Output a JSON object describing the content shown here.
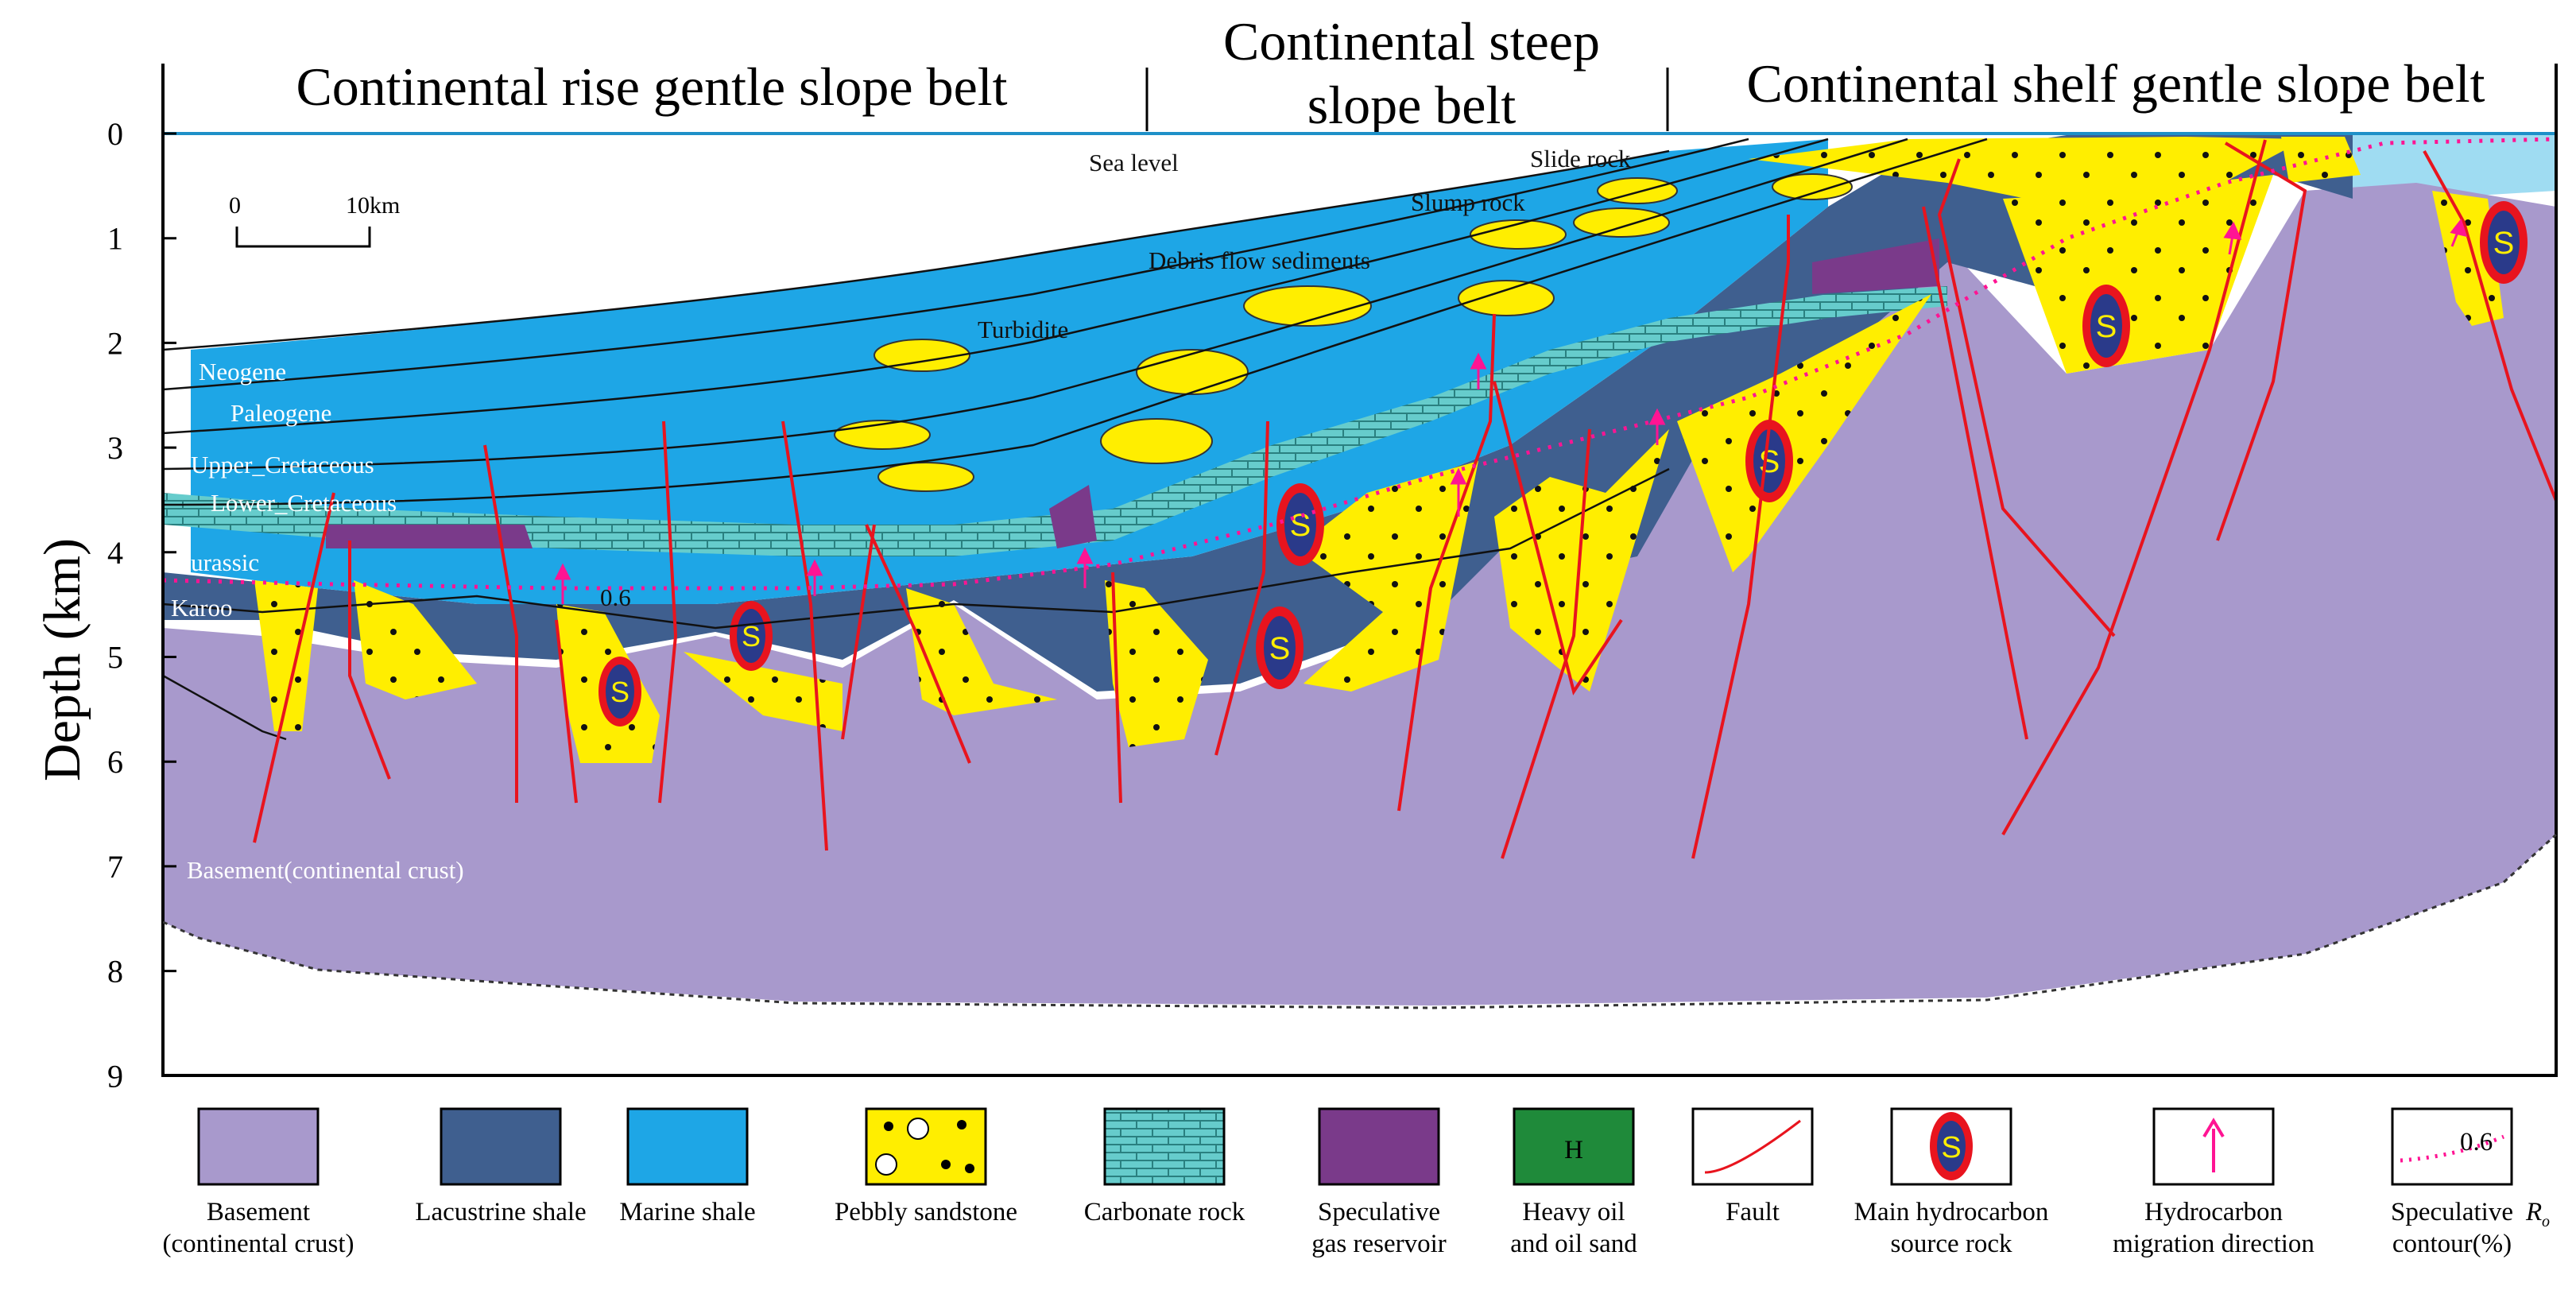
{
  "belts": {
    "rise": "Continental rise gentle slope belt",
    "steep_line1": "Continental steep",
    "steep_line2": "slope belt",
    "shelf": "Continental shelf gentle slope belt"
  },
  "axis": {
    "ylabel": "Depth (km)",
    "ticks": [
      "0",
      "1",
      "2",
      "3",
      "4",
      "5",
      "6",
      "7",
      "8",
      "9"
    ]
  },
  "scale_bar": {
    "start": "0",
    "end": "10km"
  },
  "labels": {
    "sea_level": "Sea level",
    "slide_rock": "Slide rock",
    "slump_rock": "Slump rock",
    "debris_flow": "Debris flow sediments",
    "turbidite": "Turbidite",
    "neogene": "Neogene",
    "paleogene": "Paleogene",
    "upper_cretaceous": "Upper_Cretaceous",
    "lower_cretaceous": "Lower_Cretaceous",
    "jurassic": "Jurassic",
    "karoo": "Karoo",
    "ro_value": "0.6",
    "basement": "Basement(continental crust)"
  },
  "legend": [
    {
      "key": "basement",
      "line1": "Basement",
      "line2": "(continental crust)",
      "color": "#a899cc"
    },
    {
      "key": "lacustrine",
      "line1": "Lacustrine shale",
      "line2": "",
      "color": "#3f5f8f"
    },
    {
      "key": "marine",
      "line1": "Marine shale",
      "line2": "",
      "color": "#1ea6e6"
    },
    {
      "key": "pebbly",
      "line1": "Pebbly sandstone",
      "line2": "",
      "color": "#ffee00"
    },
    {
      "key": "carbonate",
      "line1": "Carbonate rock",
      "line2": "",
      "color": "#66cccc"
    },
    {
      "key": "gas",
      "line1": "Speculative",
      "line2": "gas  reservoir",
      "color": "#7a3a8a"
    },
    {
      "key": "heavy",
      "line1": "Heavy oil",
      "line2": "and oil sand",
      "color": "#1f8a3a",
      "symbol": "H"
    },
    {
      "key": "fault",
      "line1": "Fault",
      "line2": "",
      "color": "#e8141e"
    },
    {
      "key": "source",
      "line1": "Main  hydrocarbon",
      "line2": "source rock",
      "symbol": "S"
    },
    {
      "key": "migration",
      "line1": "Hydrocarbon",
      "line2": "migration  direction",
      "color": "#ff1493"
    },
    {
      "key": "contour",
      "line1": "Speculative",
      "line2": "contour(%)",
      "symbol": "0.6",
      "extra": "R",
      "extra_sub": "o"
    }
  ],
  "colors": {
    "basement": "#a899cc",
    "lacustrine": "#3f5f8f",
    "marine": "#1ea6e6",
    "pebbly": "#ffee00",
    "carbonate": "#66cccc",
    "gas": "#7a3a8a",
    "heavy": "#1f8a3a",
    "fault": "#e8141e",
    "migration": "#ff1493",
    "sea": "#9fdcf2"
  }
}
